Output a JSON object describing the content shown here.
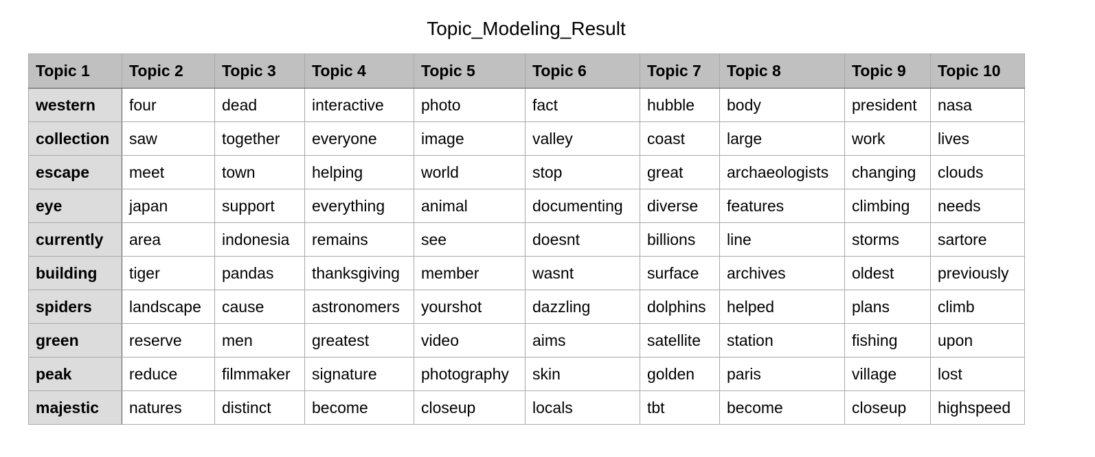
{
  "title": "Topic_Modeling_Result",
  "table": {
    "headers": [
      "Topic 1",
      "Topic 2",
      "Topic 3",
      "Topic 4",
      "Topic 5",
      "Topic 6",
      "Topic 7",
      "Topic 8",
      "Topic 9",
      "Topic 10"
    ],
    "rows": [
      [
        "western",
        "four",
        "dead",
        "interactive",
        "photo",
        "fact",
        "hubble",
        "body",
        "president",
        "nasa"
      ],
      [
        "collection",
        "saw",
        "together",
        "everyone",
        "image",
        "valley",
        "coast",
        "large",
        "work",
        "lives"
      ],
      [
        "escape",
        "meet",
        "town",
        "helping",
        "world",
        "stop",
        "great",
        "archaeologists",
        "changing",
        "clouds"
      ],
      [
        "eye",
        "japan",
        "support",
        "everything",
        "animal",
        "documenting",
        "diverse",
        "features",
        "climbing",
        "needs"
      ],
      [
        "currently",
        "area",
        "indonesia",
        "remains",
        "see",
        "doesnt",
        "billions",
        "line",
        "storms",
        "sartore"
      ],
      [
        "building",
        "tiger",
        "pandas",
        "thanksgiving",
        "member",
        "wasnt",
        "surface",
        "archives",
        "oldest",
        "previously"
      ],
      [
        "spiders",
        "landscape",
        "cause",
        "astronomers",
        "yourshot",
        "dazzling",
        "dolphins",
        "helped",
        "plans",
        "climb"
      ],
      [
        "green",
        "reserve",
        "men",
        "greatest",
        "video",
        "aims",
        "satellite",
        "station",
        "fishing",
        "upon"
      ],
      [
        "peak",
        "reduce",
        "filmmaker",
        "signature",
        "photography",
        "skin",
        "golden",
        "paris",
        "village",
        "lost"
      ],
      [
        "majestic",
        "natures",
        "distinct",
        "become",
        "closeup",
        "locals",
        "tbt",
        "become",
        "closeup",
        "highspeed"
      ]
    ]
  },
  "colors": {
    "header_bg": "#bfc0bf",
    "first_column_bg": "#dcdcdc",
    "grid": "#a8a8a8"
  }
}
